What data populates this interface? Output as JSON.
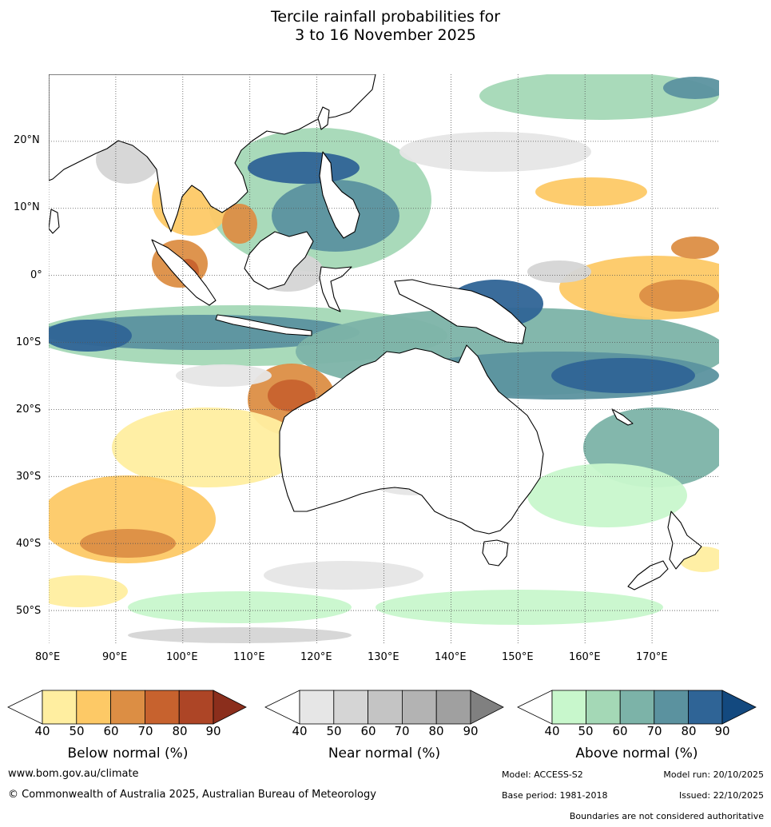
{
  "title": {
    "line1": "Tercile rainfall probabilities for",
    "line2": "3 to 16 November 2025"
  },
  "map": {
    "lon_labels": [
      "80°E",
      "90°E",
      "100°E",
      "110°E",
      "120°E",
      "130°E",
      "140°E",
      "150°E",
      "160°E",
      "170°E"
    ],
    "lat_labels": [
      "20°N",
      "10°N",
      "0°",
      "10°S",
      "20°S",
      "30°S",
      "40°S",
      "50°S"
    ],
    "lon_range": [
      80,
      180
    ],
    "lat_range": [
      -55,
      30
    ]
  },
  "colorbars": [
    {
      "id": "below",
      "title": "Below normal (%)",
      "ticks": [
        "40",
        "50",
        "60",
        "70",
        "80",
        "90"
      ],
      "colors": [
        "#ffeea0",
        "#fdc966",
        "#dc8e44",
        "#c7622e",
        "#ad4526",
        "#8b2e1c"
      ]
    },
    {
      "id": "near",
      "title": "Near normal (%)",
      "ticks": [
        "40",
        "50",
        "60",
        "70",
        "80",
        "90"
      ],
      "colors": [
        "#e6e6e6",
        "#d5d5d5",
        "#c4c4c4",
        "#b3b3b3",
        "#a0a0a0",
        "#808080"
      ]
    },
    {
      "id": "above",
      "title": "Above normal (%)",
      "ticks": [
        "40",
        "50",
        "60",
        "70",
        "80",
        "90"
      ],
      "colors": [
        "#c8f7cc",
        "#a4d8b6",
        "#7cb3a8",
        "#5b929f",
        "#2f6496",
        "#13497f"
      ]
    }
  ],
  "footer": {
    "website": "www.bom.gov.au/climate",
    "copyright": "© Commonwealth of Australia 2025, Australian Bureau of Meteorology",
    "model": "Model: ACCESS-S2",
    "model_run": "Model run: 20/10/2025",
    "base_period": "Base period: 1981-2018",
    "issued": "Issued: 22/10/2025",
    "disclaimer": "Boundaries are not considered authoritative"
  }
}
